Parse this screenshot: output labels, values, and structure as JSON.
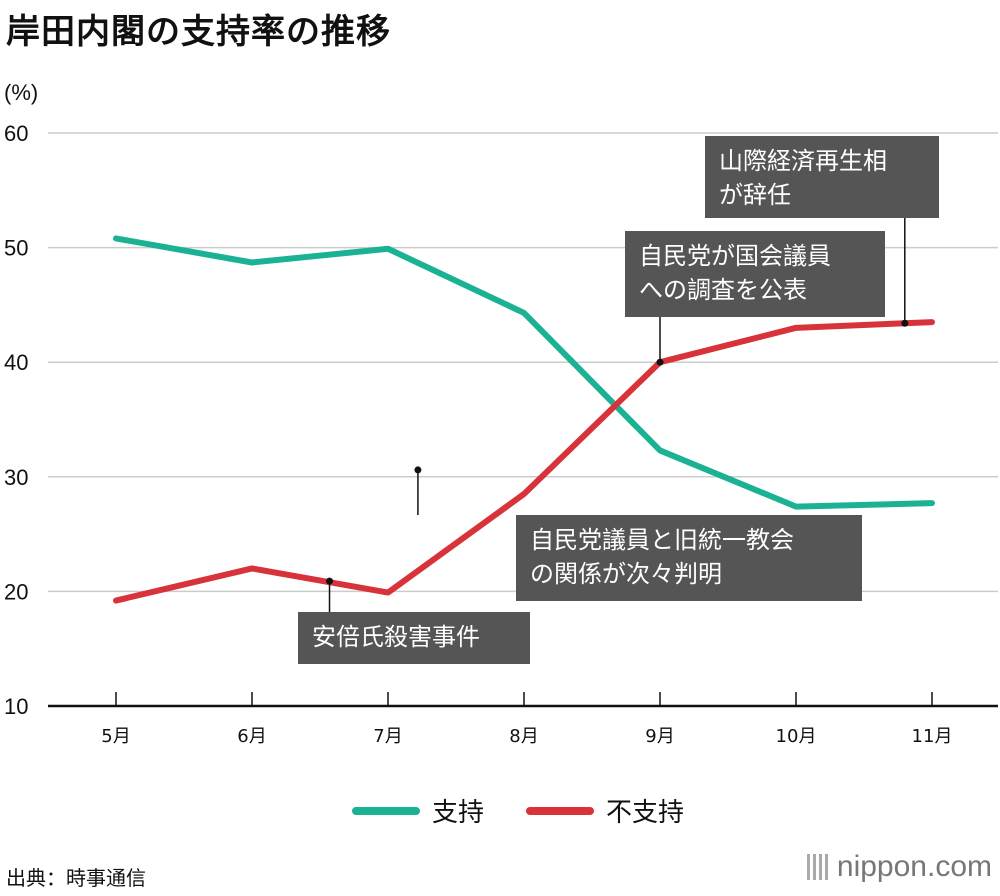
{
  "title": "岸田内閣の支持率の推移",
  "source": "出典：時事通信",
  "brand": "nippon.com",
  "chart_data": {
    "type": "line",
    "title": "岸田内閣の支持率の推移",
    "xlabel": "",
    "ylabel": "(%)",
    "categories": [
      "5月",
      "6月",
      "7月",
      "8月",
      "9月",
      "10月",
      "11月"
    ],
    "ylim": [
      10,
      60
    ],
    "yticks": [
      10,
      20,
      30,
      40,
      50,
      60
    ],
    "grid": true,
    "legend_position": "bottom",
    "series": [
      {
        "name": "支持",
        "color": "#1bb294",
        "values": [
          50.8,
          48.7,
          49.9,
          44.3,
          32.3,
          27.4,
          27.7
        ]
      },
      {
        "name": "不支持",
        "color": "#d8323a",
        "values": [
          19.2,
          22.0,
          19.9,
          28.5,
          40.0,
          43.0,
          43.5
        ]
      }
    ],
    "annotations": [
      {
        "lines": [
          "安倍氏殺害事件"
        ],
        "x": 6.57,
        "y": 20.9,
        "color": "#555555"
      },
      {
        "lines": [
          "自民党議員と旧統一教会",
          "の関係が次々判明"
        ],
        "x": 7.22,
        "y": 30.6,
        "color": "#555555"
      },
      {
        "lines": [
          "自民党が国会議員",
          "への調査を公表"
        ],
        "x": 9.0,
        "y": 40.0,
        "color": "#555555"
      },
      {
        "lines": [
          "山際経済再生相",
          "が辞任"
        ],
        "x": 10.8,
        "y": 43.4,
        "color": "#555555"
      }
    ]
  }
}
